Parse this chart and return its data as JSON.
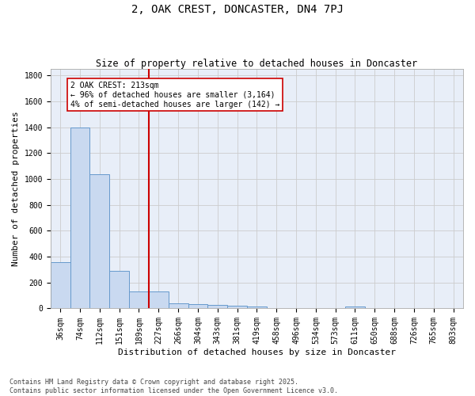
{
  "title": "2, OAK CREST, DONCASTER, DN4 7PJ",
  "subtitle": "Size of property relative to detached houses in Doncaster",
  "xlabel": "Distribution of detached houses by size in Doncaster",
  "ylabel": "Number of detached properties",
  "categories": [
    "36sqm",
    "74sqm",
    "112sqm",
    "151sqm",
    "189sqm",
    "227sqm",
    "266sqm",
    "304sqm",
    "343sqm",
    "381sqm",
    "419sqm",
    "458sqm",
    "496sqm",
    "534sqm",
    "573sqm",
    "611sqm",
    "650sqm",
    "688sqm",
    "726sqm",
    "765sqm",
    "803sqm"
  ],
  "values": [
    360,
    1400,
    1035,
    290,
    130,
    130,
    40,
    35,
    30,
    20,
    15,
    0,
    0,
    0,
    0,
    15,
    0,
    0,
    0,
    0,
    0
  ],
  "bar_color": "#c9d9f0",
  "bar_edge_color": "#6699cc",
  "vline_index": 5,
  "vline_color": "#cc0000",
  "annotation_text": "2 OAK CREST: 213sqm\n← 96% of detached houses are smaller (3,164)\n4% of semi-detached houses are larger (142) →",
  "annotation_box_color": "#cc0000",
  "annotation_text_color": "#000000",
  "ylim": [
    0,
    1850
  ],
  "yticks": [
    0,
    200,
    400,
    600,
    800,
    1000,
    1200,
    1400,
    1600,
    1800
  ],
  "grid_color": "#cccccc",
  "background_color": "#e8eef8",
  "footer_text": "Contains HM Land Registry data © Crown copyright and database right 2025.\nContains public sector information licensed under the Open Government Licence v3.0.",
  "title_fontsize": 10,
  "subtitle_fontsize": 8.5,
  "axis_label_fontsize": 8,
  "tick_fontsize": 7,
  "annotation_fontsize": 7,
  "footer_fontsize": 6
}
